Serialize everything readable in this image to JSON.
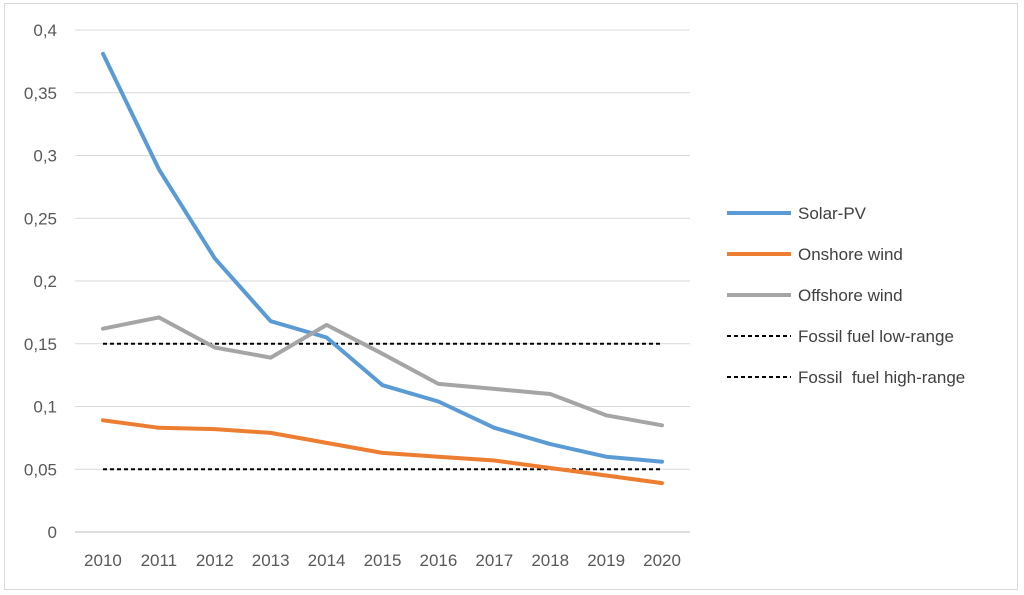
{
  "chart_data": {
    "type": "line",
    "title": "",
    "xlabel": "",
    "ylabel": "",
    "x": [
      "2010",
      "2011",
      "2012",
      "2013",
      "2014",
      "2015",
      "2016",
      "2017",
      "2018",
      "2019",
      "2020"
    ],
    "ylim": [
      0,
      0.4
    ],
    "y_ticks": [
      0,
      0.05,
      0.1,
      0.15,
      0.2,
      0.25,
      0.3,
      0.35,
      0.4
    ],
    "y_tick_labels": [
      "0",
      "0,05",
      "0,1",
      "0,15",
      "0,2",
      "0,25",
      "0,3",
      "0,35",
      "0,4"
    ],
    "grid": true,
    "legend_position": "right",
    "series": [
      {
        "name": "Solar-PV",
        "color": "#5b9bd5",
        "style": "solid",
        "values": [
          0.381,
          0.289,
          0.218,
          0.168,
          0.155,
          0.117,
          0.104,
          0.083,
          0.07,
          0.06,
          0.056
        ]
      },
      {
        "name": "Onshore wind",
        "color": "#ed7d31",
        "style": "solid",
        "values": [
          0.089,
          0.083,
          0.082,
          0.079,
          0.071,
          0.063,
          0.06,
          0.057,
          0.051,
          0.045,
          0.039
        ]
      },
      {
        "name": "Offshore wind",
        "color": "#a5a5a5",
        "style": "solid",
        "values": [
          0.162,
          0.171,
          0.147,
          0.139,
          0.165,
          0.142,
          0.118,
          0.114,
          0.11,
          0.093,
          0.085
        ]
      },
      {
        "name": "Fossil fuel low-range",
        "color": "#000000",
        "style": "dashed",
        "values": [
          0.15,
          0.15,
          0.15,
          0.15,
          0.15,
          0.15,
          0.15,
          0.15,
          0.15,
          0.15,
          0.15
        ]
      },
      {
        "name": "Fossil  fuel high-range",
        "color": "#000000",
        "style": "dashed",
        "values": [
          0.05,
          0.05,
          0.05,
          0.05,
          0.05,
          0.05,
          0.05,
          0.05,
          0.05,
          0.05,
          0.05
        ]
      }
    ]
  }
}
